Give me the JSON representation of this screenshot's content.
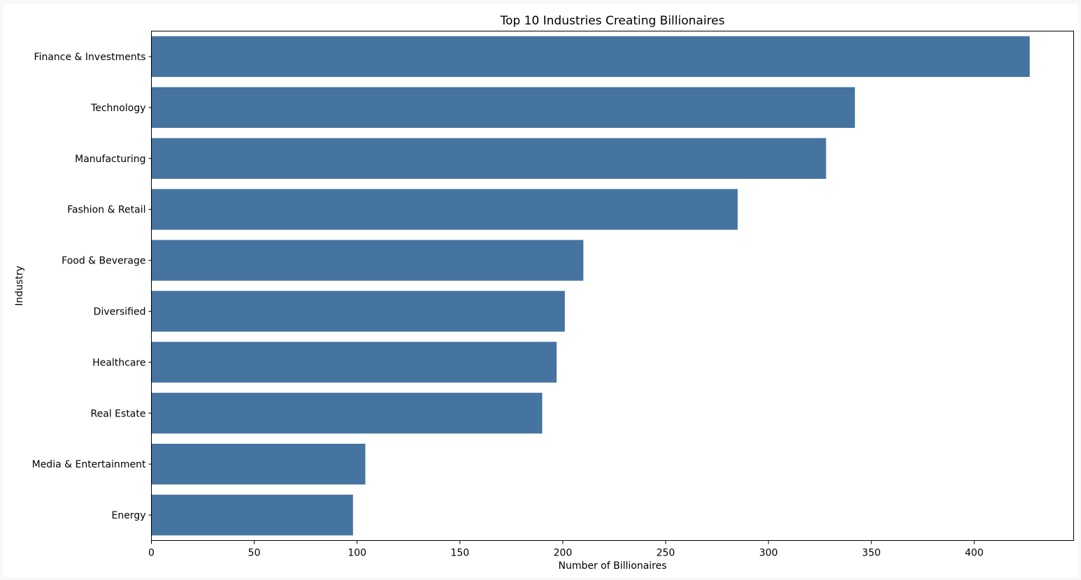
{
  "chart_data": {
    "type": "bar",
    "orientation": "horizontal",
    "title": "Top 10 Industries Creating Billionaires",
    "xlabel": "Number of Billionaires",
    "ylabel": "Industry",
    "categories": [
      "Finance & Investments",
      "Technology",
      "Manufacturing",
      "Fashion & Retail",
      "Food & Beverage",
      "Diversified",
      "Healthcare",
      "Real Estate",
      "Media & Entertainment",
      "Energy"
    ],
    "values": [
      427,
      342,
      328,
      285,
      210,
      201,
      197,
      190,
      104,
      98
    ],
    "xlim": [
      0,
      448.35
    ],
    "xticks": [
      0,
      50,
      100,
      150,
      200,
      250,
      300,
      350,
      400
    ],
    "grid": false,
    "legend": "none",
    "bar_color": "#4574a0"
  }
}
